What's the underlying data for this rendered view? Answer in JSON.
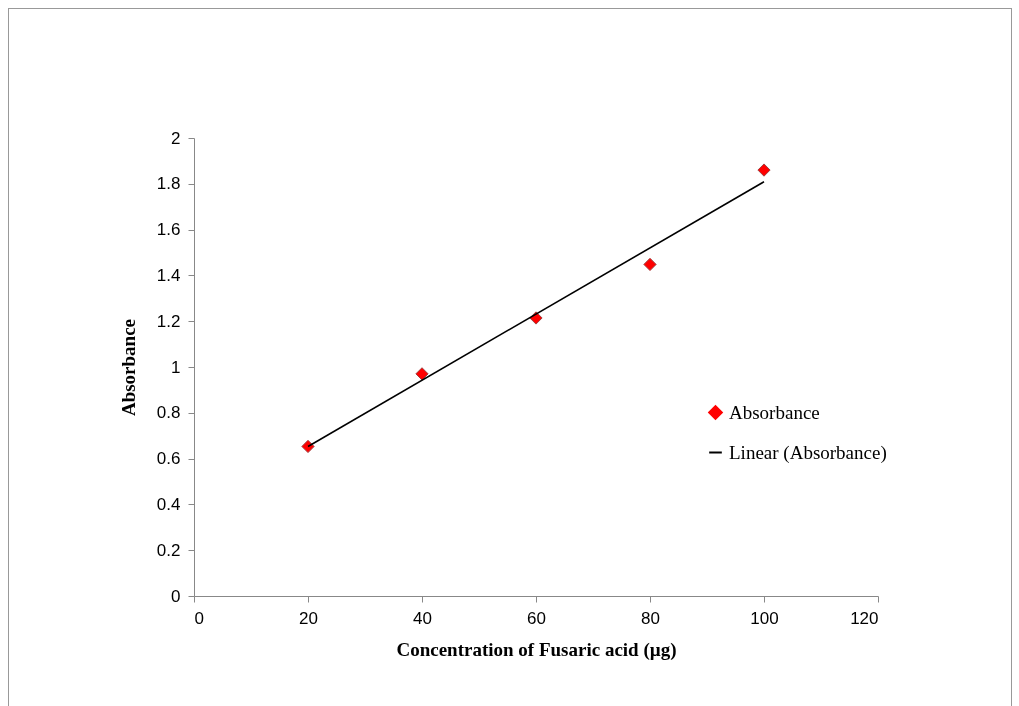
{
  "chart_data": {
    "type": "scatter",
    "xlabel": "Concentration  of Fusaric acid (µg)",
    "ylabel": "Absorbance",
    "series": [
      {
        "name": "Absorbance",
        "color": "#ff0000",
        "marker": "diamond",
        "x": [
          20,
          40,
          60,
          80,
          100
        ],
        "values": [
          0.653,
          0.97,
          1.214,
          1.448,
          1.86
        ]
      },
      {
        "name": "Linear (Absorbance)",
        "type": "line",
        "color": "#000000",
        "marker": "none",
        "x": [
          20,
          100
        ],
        "values": [
          0.653,
          1.809
        ]
      }
    ],
    "xlim": [
      0,
      120
    ],
    "xticks": [
      0,
      20,
      40,
      60,
      80,
      100,
      120
    ],
    "ylim": [
      0,
      2
    ],
    "yticks": [
      0,
      0.2,
      0.4,
      0.6,
      0.8,
      1,
      1.2,
      1.4,
      1.6,
      1.8,
      2
    ],
    "grid": false,
    "legend": "right"
  }
}
